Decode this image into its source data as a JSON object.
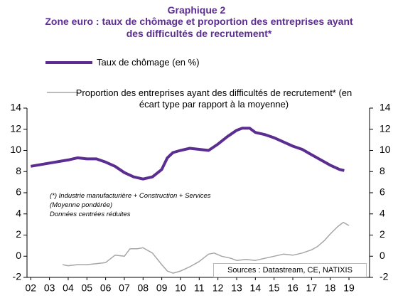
{
  "chart_data": {
    "type": "line",
    "title": "Graphique 2",
    "subtitle": "Zone euro : taux de chômage et proportion des entreprises ayant des difficultés de recrutement*",
    "annotations": [
      "(*) Industrie manufacturière + Construction + Services",
      "(Moyenne pondérée)",
      "Données centrées réduites"
    ],
    "source": "Sources : Datastream, CE, NATIXIS",
    "xlim": [
      2001.8,
      2020.1
    ],
    "xticks": [
      {
        "value": 2002,
        "label": "02"
      },
      {
        "value": 2003,
        "label": "03"
      },
      {
        "value": 2004,
        "label": "04"
      },
      {
        "value": 2005,
        "label": "05"
      },
      {
        "value": 2006,
        "label": "06"
      },
      {
        "value": 2007,
        "label": "07"
      },
      {
        "value": 2008,
        "label": "08"
      },
      {
        "value": 2009,
        "label": "09"
      },
      {
        "value": 2010,
        "label": "10"
      },
      {
        "value": 2011,
        "label": "11"
      },
      {
        "value": 2012,
        "label": "12"
      },
      {
        "value": 2013,
        "label": "13"
      },
      {
        "value": 2014,
        "label": "14"
      },
      {
        "value": 2015,
        "label": "15"
      },
      {
        "value": 2016,
        "label": "16"
      },
      {
        "value": 2017,
        "label": "17"
      },
      {
        "value": 2018,
        "label": "18"
      },
      {
        "value": 2019,
        "label": "19"
      }
    ],
    "ylim": [
      -2,
      14
    ],
    "yticks": [
      -2,
      0,
      2,
      4,
      6,
      8,
      10,
      12,
      14
    ],
    "y2lim": [
      -2,
      14
    ],
    "y2ticks": [
      -2,
      0,
      2,
      4,
      6,
      8,
      10,
      12,
      14
    ],
    "series": [
      {
        "name": "Taux de chômage (en %)",
        "color": "#5c2d91",
        "x": [
          2002,
          2003,
          2004,
          2004.5,
          2005,
          2005.5,
          2006,
          2006.5,
          2007,
          2007.5,
          2008,
          2008.5,
          2009,
          2009.3,
          2009.6,
          2010,
          2010.5,
          2011,
          2011.5,
          2012,
          2012.5,
          2013,
          2013.3,
          2013.7,
          2014,
          2014.5,
          2015,
          2015.5,
          2016,
          2016.5,
          2017,
          2017.5,
          2018,
          2018.5,
          2018.75
        ],
        "values": [
          8.5,
          8.8,
          9.1,
          9.3,
          9.2,
          9.2,
          8.9,
          8.5,
          7.9,
          7.5,
          7.3,
          7.5,
          8.2,
          9.3,
          9.8,
          10.0,
          10.2,
          10.1,
          10.0,
          10.6,
          11.3,
          11.9,
          12.1,
          12.1,
          11.7,
          11.5,
          11.2,
          10.8,
          10.4,
          10.1,
          9.6,
          9.1,
          8.6,
          8.2,
          8.1
        ]
      },
      {
        "name": "Proportion des entreprises ayant des difficultés de recrutement* (en écart type par rapport à la moyenne)",
        "color": "#a6a6a6",
        "axis": "y2",
        "x": [
          2003.7,
          2004,
          2004.5,
          2005,
          2005.5,
          2006,
          2006.5,
          2007,
          2007.3,
          2007.7,
          2008,
          2008.5,
          2009,
          2009.3,
          2009.6,
          2010,
          2010.5,
          2011,
          2011.5,
          2011.8,
          2012.2,
          2012.7,
          2013,
          2013.5,
          2014,
          2014.5,
          2015,
          2015.5,
          2016,
          2016.5,
          2017,
          2017.3,
          2017.7,
          2018,
          2018.4,
          2018.7,
          2019
        ],
        "values": [
          -0.8,
          -0.9,
          -0.8,
          -0.8,
          -0.7,
          -0.6,
          0.1,
          0.0,
          0.7,
          0.7,
          0.8,
          0.3,
          -0.8,
          -1.4,
          -1.6,
          -1.4,
          -1.0,
          -0.5,
          0.2,
          0.3,
          0.0,
          -0.2,
          -0.4,
          -0.3,
          -0.4,
          -0.2,
          0.0,
          0.2,
          0.1,
          0.3,
          0.6,
          0.9,
          1.5,
          2.1,
          2.8,
          3.2,
          2.9
        ]
      }
    ]
  }
}
